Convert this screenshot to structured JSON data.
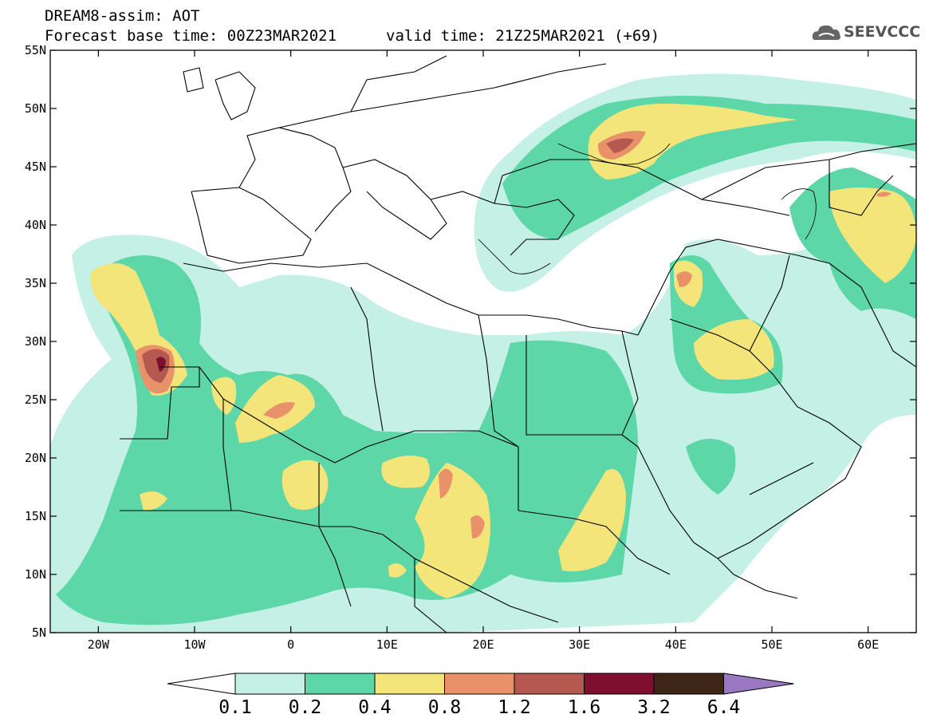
{
  "title": {
    "line1": "DREAM8-assim: AOT",
    "line2": "Forecast base time: 00Z23MAR2021",
    "valid": "valid time: 21Z25MAR2021 (+69)"
  },
  "logo": {
    "text": "SEEVCCC",
    "icon": "cloud-logo-icon"
  },
  "map": {
    "lon_range": [
      -25,
      65
    ],
    "lat_range": [
      5,
      55
    ],
    "lon_ticks": [
      {
        "value": -20,
        "label": "20W"
      },
      {
        "value": -10,
        "label": "10W"
      },
      {
        "value": 0,
        "label": "0"
      },
      {
        "value": 10,
        "label": "10E"
      },
      {
        "value": 20,
        "label": "20E"
      },
      {
        "value": 30,
        "label": "30E"
      },
      {
        "value": 40,
        "label": "40E"
      },
      {
        "value": 50,
        "label": "50E"
      },
      {
        "value": 60,
        "label": "60E"
      }
    ],
    "lat_ticks": [
      {
        "value": 55,
        "label": "55N"
      },
      {
        "value": 50,
        "label": "50N"
      },
      {
        "value": 45,
        "label": "45N"
      },
      {
        "value": 40,
        "label": "40N"
      },
      {
        "value": 35,
        "label": "35N"
      },
      {
        "value": 30,
        "label": "30N"
      },
      {
        "value": 25,
        "label": "25N"
      },
      {
        "value": 20,
        "label": "20N"
      },
      {
        "value": 15,
        "label": "15N"
      },
      {
        "value": 10,
        "label": "10N"
      },
      {
        "value": 5,
        "label": "5N"
      }
    ]
  },
  "colorbar": {
    "colors": [
      "#ffffff",
      "#c4f0e6",
      "#5dd6a8",
      "#f3e57a",
      "#e9926a",
      "#b5584f",
      "#7e0e2e",
      "#3d2618",
      "#9b78c2"
    ],
    "labels": [
      "0.1",
      "0.2",
      "0.4",
      "0.8",
      "1.2",
      "1.6",
      "3.2",
      "6.4"
    ]
  }
}
